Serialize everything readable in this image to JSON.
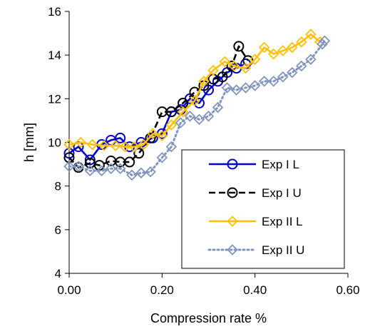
{
  "chart_data": {
    "type": "line",
    "xlabel": "Compression rate %",
    "ylabel": "h [mm]",
    "xlim": [
      0,
      0.6
    ],
    "ylim": [
      4,
      16
    ],
    "x_ticks": [
      "0.00",
      "0.20",
      "0.40",
      "0.60"
    ],
    "y_ticks": [
      "4",
      "6",
      "8",
      "10",
      "12",
      "14",
      "16"
    ],
    "grid": false,
    "legend_position": "bottom-right",
    "series": [
      {
        "name": "Exp I L",
        "color": "#0000cc",
        "dash": "solid",
        "marker": "circle",
        "points": [
          [
            0.0,
            9.5
          ],
          [
            0.02,
            9.8
          ],
          [
            0.045,
            9.2
          ],
          [
            0.07,
            9.9
          ],
          [
            0.09,
            10.1
          ],
          [
            0.11,
            10.2
          ],
          [
            0.13,
            9.8
          ],
          [
            0.155,
            10.0
          ],
          [
            0.18,
            10.2
          ],
          [
            0.2,
            10.4
          ],
          [
            0.22,
            11.4
          ],
          [
            0.24,
            11.5
          ],
          [
            0.26,
            12.0
          ],
          [
            0.28,
            11.8
          ],
          [
            0.3,
            12.4
          ],
          [
            0.32,
            12.8
          ],
          [
            0.34,
            13.2
          ],
          [
            0.36,
            13.4
          ],
          [
            0.38,
            13.6
          ]
        ]
      },
      {
        "name": "Exp I U",
        "color": "#000000",
        "dash": "dashed",
        "marker": "circle",
        "points": [
          [
            0.0,
            9.3
          ],
          [
            0.02,
            8.85
          ],
          [
            0.045,
            9.05
          ],
          [
            0.065,
            8.95
          ],
          [
            0.09,
            9.15
          ],
          [
            0.11,
            9.1
          ],
          [
            0.13,
            9.1
          ],
          [
            0.15,
            9.5
          ],
          [
            0.175,
            10.2
          ],
          [
            0.2,
            11.4
          ],
          [
            0.22,
            11.4
          ],
          [
            0.245,
            11.8
          ],
          [
            0.27,
            12.3
          ],
          [
            0.29,
            12.6
          ],
          [
            0.31,
            12.9
          ],
          [
            0.33,
            13.0
          ],
          [
            0.35,
            13.5
          ],
          [
            0.365,
            14.4
          ],
          [
            0.385,
            13.75
          ]
        ]
      },
      {
        "name": "Exp II L",
        "color": "#ffc000",
        "dash": "solid",
        "marker": "diamond",
        "points": [
          [
            0.0,
            9.9
          ],
          [
            0.025,
            10.0
          ],
          [
            0.05,
            9.9
          ],
          [
            0.075,
            9.85
          ],
          [
            0.1,
            9.85
          ],
          [
            0.12,
            9.8
          ],
          [
            0.14,
            9.8
          ],
          [
            0.16,
            9.9
          ],
          [
            0.18,
            10.4
          ],
          [
            0.2,
            10.3
          ],
          [
            0.22,
            10.8
          ],
          [
            0.245,
            11.4
          ],
          [
            0.27,
            11.9
          ],
          [
            0.29,
            12.8
          ],
          [
            0.31,
            13.3
          ],
          [
            0.335,
            13.7
          ],
          [
            0.355,
            13.5
          ],
          [
            0.38,
            13.4
          ],
          [
            0.4,
            13.8
          ],
          [
            0.42,
            14.35
          ],
          [
            0.44,
            14.05
          ],
          [
            0.46,
            14.2
          ],
          [
            0.48,
            14.35
          ],
          [
            0.5,
            14.6
          ],
          [
            0.52,
            14.95
          ],
          [
            0.54,
            14.6
          ]
        ]
      },
      {
        "name": "Exp II U",
        "color": "#8095bd",
        "dash": "dotted",
        "marker": "diamond",
        "points": [
          [
            0.0,
            8.9
          ],
          [
            0.02,
            8.9
          ],
          [
            0.045,
            8.7
          ],
          [
            0.07,
            8.7
          ],
          [
            0.09,
            8.8
          ],
          [
            0.11,
            8.8
          ],
          [
            0.135,
            8.5
          ],
          [
            0.155,
            8.6
          ],
          [
            0.175,
            8.65
          ],
          [
            0.2,
            9.3
          ],
          [
            0.22,
            9.8
          ],
          [
            0.24,
            10.9
          ],
          [
            0.26,
            11.2
          ],
          [
            0.28,
            11.05
          ],
          [
            0.3,
            11.2
          ],
          [
            0.32,
            11.6
          ],
          [
            0.34,
            12.5
          ],
          [
            0.36,
            12.4
          ],
          [
            0.38,
            12.5
          ],
          [
            0.4,
            12.6
          ],
          [
            0.42,
            12.8
          ],
          [
            0.44,
            12.8
          ],
          [
            0.46,
            13.0
          ],
          [
            0.48,
            13.2
          ],
          [
            0.5,
            13.5
          ],
          [
            0.52,
            13.8
          ],
          [
            0.545,
            14.5
          ],
          [
            0.55,
            14.65
          ]
        ]
      }
    ]
  }
}
